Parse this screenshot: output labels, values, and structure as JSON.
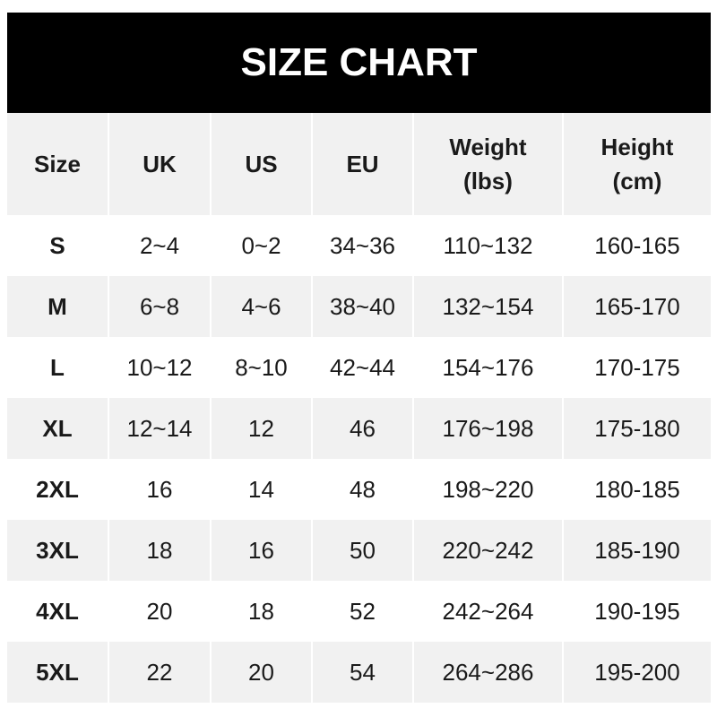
{
  "title": "SIZE CHART",
  "headers": [
    [
      "Size",
      ""
    ],
    [
      "UK",
      ""
    ],
    [
      "US",
      ""
    ],
    [
      "EU",
      ""
    ],
    [
      "Weight",
      "(lbs)"
    ],
    [
      "Height",
      "(cm)"
    ]
  ],
  "rows": [
    [
      "S",
      "2~4",
      "0~2",
      "34~36",
      "110~132",
      "160-165"
    ],
    [
      "M",
      "6~8",
      "4~6",
      "38~40",
      "132~154",
      "165-170"
    ],
    [
      "L",
      "10~12",
      "8~10",
      "42~44",
      "154~176",
      "170-175"
    ],
    [
      "XL",
      "12~14",
      "12",
      "46",
      "176~198",
      "175-180"
    ],
    [
      "2XL",
      "16",
      "14",
      "48",
      "198~220",
      "180-185"
    ],
    [
      "3XL",
      "18",
      "16",
      "50",
      "220~242",
      "185-190"
    ],
    [
      "4XL",
      "20",
      "18",
      "52",
      "242~264",
      "190-195"
    ],
    [
      "5XL",
      "22",
      "20",
      "54",
      "264~286",
      "195-200"
    ]
  ]
}
